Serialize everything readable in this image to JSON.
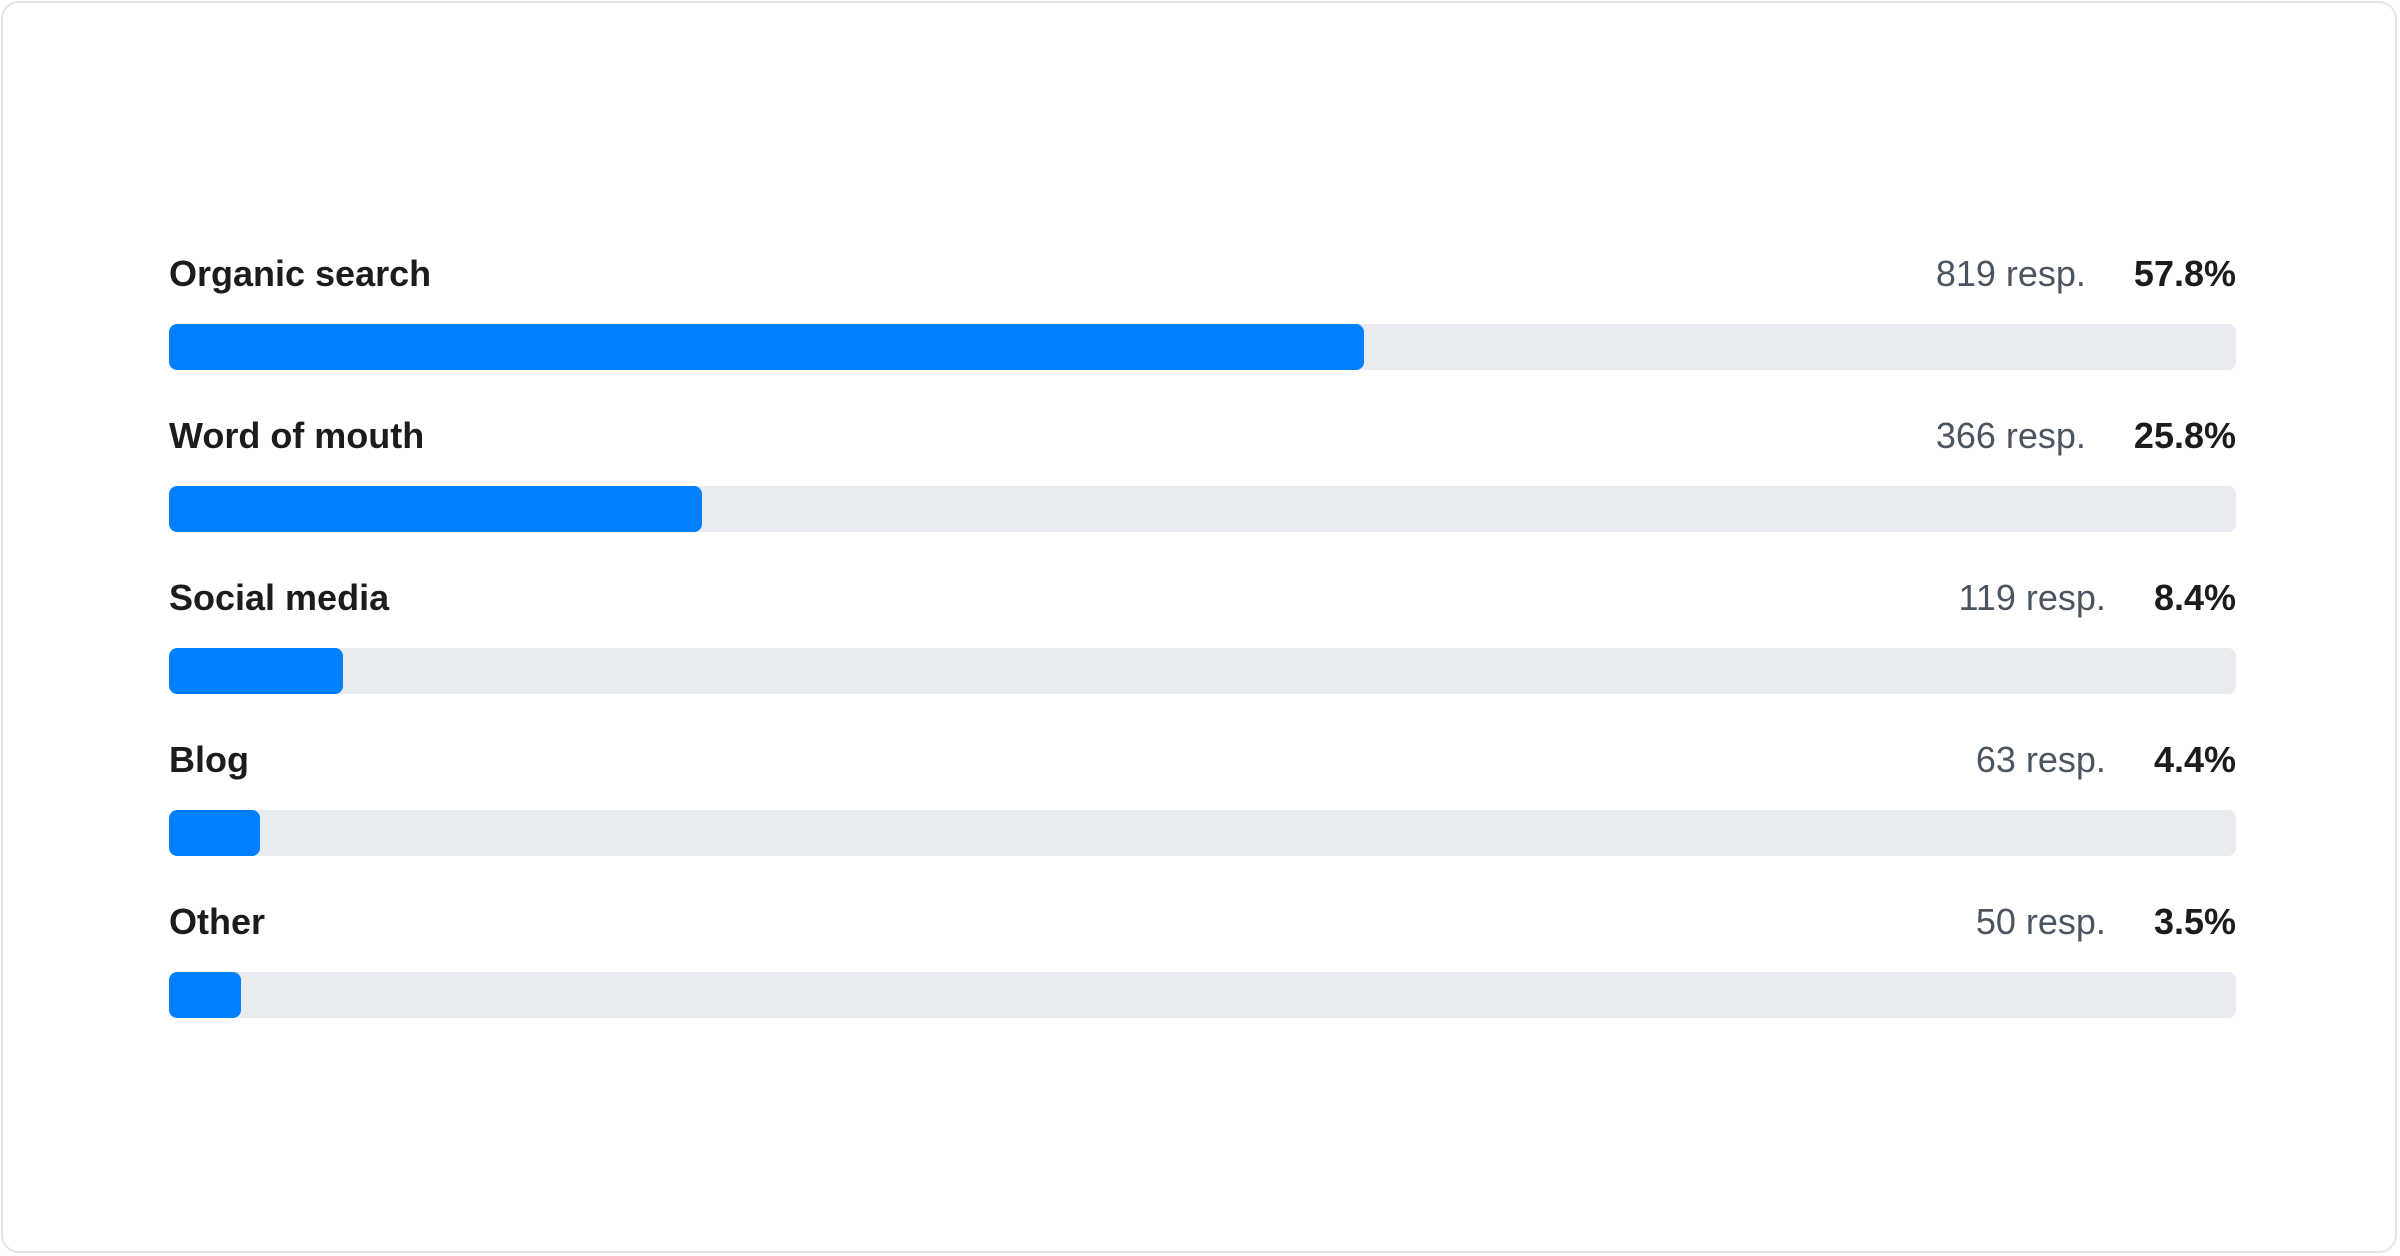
{
  "chart_data": {
    "type": "bar",
    "orientation": "horizontal",
    "categories": [
      "Organic search",
      "Word of mouth",
      "Social media",
      "Blog",
      "Other"
    ],
    "responses": [
      819,
      366,
      119,
      63,
      50
    ],
    "response_suffix": "resp.",
    "values": [
      57.8,
      25.8,
      8.4,
      4.4,
      3.5
    ],
    "value_labels": [
      "57.8%",
      "25.8%",
      "8.4%",
      "4.4%",
      "3.5%"
    ],
    "response_labels": [
      "819 resp.",
      "366 resp.",
      "119 resp.",
      "63 resp.",
      "50 resp."
    ],
    "xlim": [
      0,
      100
    ],
    "grid": false,
    "colors": {
      "bar": "#0080ff",
      "track": "#e8ecf1"
    }
  }
}
